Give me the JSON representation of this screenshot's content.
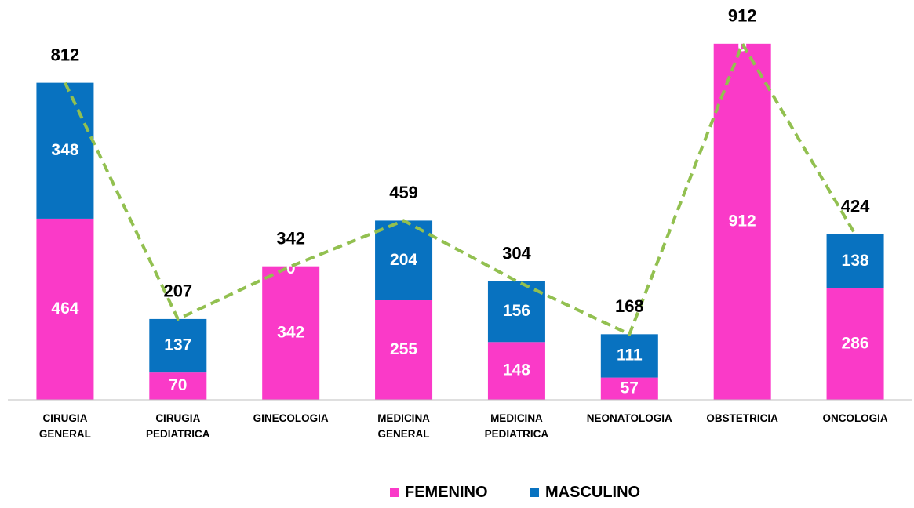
{
  "chart_data": {
    "type": "stacked_bar",
    "categories": [
      "CIRUGIA\nGENERAL",
      "CIRUGIA\nPEDIATRICA",
      "GINECOLOGIA",
      "MEDICINA\nGENERAL",
      "MEDICINA\nPEDIATRICA",
      "NEONATOLOGIA",
      "OBSTETRICIA",
      "ONCOLOGIA"
    ],
    "series": [
      {
        "name": "FEMENINO",
        "color": "#fa3ac8",
        "values": [
          464,
          70,
          342,
          255,
          148,
          57,
          912,
          286
        ]
      },
      {
        "name": "MASCULINO",
        "color": "#0872c0",
        "values": [
          348,
          137,
          0,
          204,
          156,
          111,
          0,
          138
        ]
      }
    ],
    "totals": {
      "color": "#92c050",
      "values": [
        812,
        207,
        342,
        459,
        304,
        168,
        912,
        424
      ]
    },
    "ylim": [
      0,
      1000
    ],
    "legend": "bottom"
  }
}
